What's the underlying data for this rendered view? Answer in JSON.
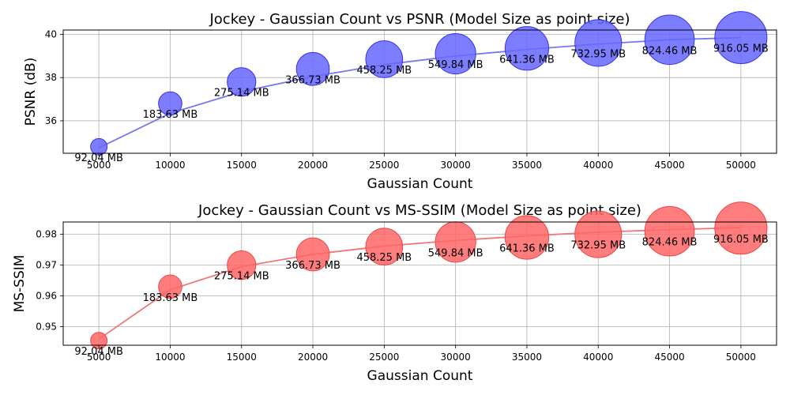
{
  "chart_data": [
    {
      "type": "scatter",
      "title": "Jockey - Gaussian Count vs PSNR (Model Size as point size)",
      "xlabel": "Gaussian Count",
      "ylabel": "PSNR (dB)",
      "x": [
        5000,
        10000,
        15000,
        20000,
        25000,
        30000,
        35000,
        40000,
        45000,
        50000
      ],
      "y": [
        34.8,
        36.8,
        37.8,
        38.4,
        38.85,
        39.1,
        39.35,
        39.6,
        39.75,
        39.85
      ],
      "point_labels": [
        "92.04 MB",
        "183.63 MB",
        "275.14 MB",
        "366.73 MB",
        "458.25 MB",
        "549.84 MB",
        "641.36 MB",
        "732.95 MB",
        "824.46 MB",
        "916.05 MB"
      ],
      "model_size_mb": [
        92.04,
        183.63,
        275.14,
        366.73,
        458.25,
        549.84,
        641.36,
        732.95,
        824.46,
        916.05
      ],
      "trend_line": {
        "x": [
          5000,
          10000,
          15000,
          20000,
          25000,
          30000,
          35000,
          40000,
          45000,
          50000
        ],
        "y": [
          34.75,
          36.35,
          37.35,
          38.05,
          38.6,
          39.0,
          39.3,
          39.55,
          39.75,
          39.85
        ]
      },
      "xlim": [
        2500,
        52500
      ],
      "ylim": [
        34.5,
        40.2
      ],
      "x_ticks": [
        5000,
        10000,
        15000,
        20000,
        25000,
        30000,
        35000,
        40000,
        45000,
        50000
      ],
      "y_ticks": [
        36,
        38,
        40
      ],
      "y_tick_labels": [
        "36",
        "38",
        "40"
      ],
      "grid": true,
      "color": "#6666ff",
      "edge_color": "#3333ee",
      "line_color": "#7777ee"
    },
    {
      "type": "scatter",
      "title": "Jockey - Gaussian Count vs MS-SSIM (Model Size as point size)",
      "xlabel": "Gaussian Count",
      "ylabel": "MS-SSIM",
      "x": [
        5000,
        10000,
        15000,
        20000,
        25000,
        30000,
        35000,
        40000,
        45000,
        50000
      ],
      "y": [
        0.9455,
        0.963,
        0.97,
        0.9735,
        0.976,
        0.9775,
        0.979,
        0.98,
        0.981,
        0.982
      ],
      "point_labels": [
        "92.04 MB",
        "183.63 MB",
        "275.14 MB",
        "366.73 MB",
        "458.25 MB",
        "549.84 MB",
        "641.36 MB",
        "732.95 MB",
        "824.46 MB",
        "916.05 MB"
      ],
      "model_size_mb": [
        92.04,
        183.63,
        275.14,
        366.73,
        458.25,
        549.84,
        641.36,
        732.95,
        824.46,
        916.05
      ],
      "trend_line": {
        "x": [
          5000,
          10000,
          15000,
          20000,
          25000,
          30000,
          35000,
          40000,
          45000,
          50000
        ],
        "y": [
          0.946,
          0.962,
          0.9695,
          0.9735,
          0.9762,
          0.978,
          0.9795,
          0.9807,
          0.9815,
          0.9822
        ]
      },
      "xlim": [
        2500,
        52500
      ],
      "ylim": [
        0.944,
        0.984
      ],
      "x_ticks": [
        5000,
        10000,
        15000,
        20000,
        25000,
        30000,
        35000,
        40000,
        45000,
        50000
      ],
      "y_ticks": [
        0.95,
        0.96,
        0.97,
        0.98
      ],
      "y_tick_labels": [
        "0.95",
        "0.96",
        "0.97",
        "0.98"
      ],
      "grid": true,
      "color": "#ff6666",
      "edge_color": "#ee4444",
      "line_color": "#ee7777"
    }
  ]
}
